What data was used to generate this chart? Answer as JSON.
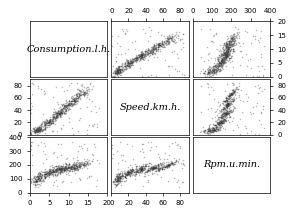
{
  "variables": [
    "Consumption.l.h.",
    "Speed.km.h.",
    "Rpm.u.min."
  ],
  "label_fontsize": 7.0,
  "tick_fontsize": 5.0,
  "scatter_color": "#333333",
  "scatter_alpha": 0.35,
  "marker_size": 1.2,
  "seed": 123,
  "n_points": 600,
  "ranges": {
    "Consumption.l.h.": [
      0,
      20
    ],
    "Speed.km.h.": [
      0,
      90
    ],
    "Rpm.u.min.": [
      0,
      400
    ]
  },
  "ticks": {
    "Consumption.l.h.": [
      0,
      5,
      10,
      15,
      20
    ],
    "Speed.km.h.": [
      0,
      20,
      40,
      60,
      80
    ],
    "Rpm.u.min.": [
      0,
      100,
      200,
      300,
      400
    ]
  },
  "figsize": [
    3.0,
    2.14
  ],
  "dpi": 100
}
